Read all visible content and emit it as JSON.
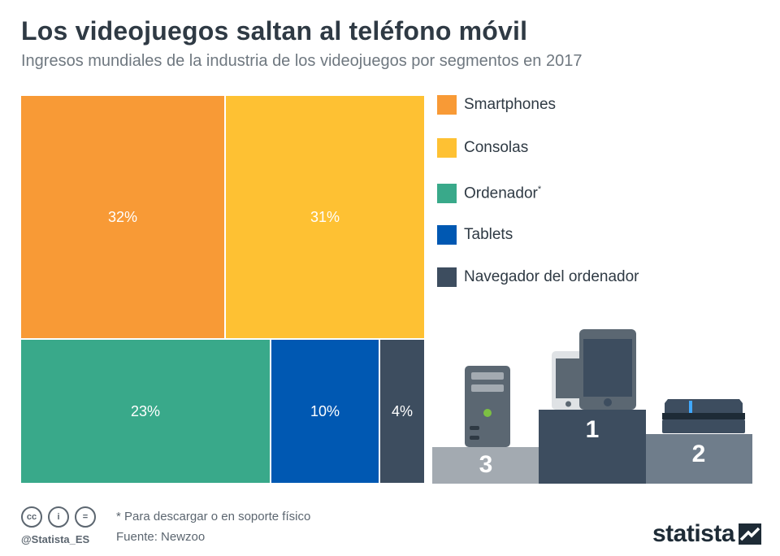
{
  "header": {
    "title": "Los videojuegos saltan al teléfono móvil",
    "subtitle": "Ingresos mundiales de la industria de los videojuegos por segmentos en 2017"
  },
  "chart_data": {
    "type": "treemap",
    "title": "Los videojuegos saltan al teléfono móvil",
    "subtitle": "Ingresos mundiales de la industria de los videojuegos por segmentos en 2017",
    "unit": "%",
    "segments": [
      {
        "name": "Smartphones",
        "value": 32,
        "label": "32%",
        "color": "#f89a36"
      },
      {
        "name": "Consolas",
        "value": 31,
        "label": "31%",
        "color": "#fec133"
      },
      {
        "name": "Ordenador",
        "value": 23,
        "label": "23%",
        "color": "#39a98a"
      },
      {
        "name": "Tablets",
        "value": 10,
        "label": "10%",
        "color": "#0058b2"
      },
      {
        "name": "Navegador del ordenador",
        "value": 4,
        "label": "4%",
        "color": "#3d4d5f"
      }
    ],
    "legend_placement": "right"
  },
  "legend": {
    "items": [
      {
        "label": "Smartphones",
        "suffix": "",
        "color": "#f89a36"
      },
      {
        "label": "Consolas",
        "suffix": "",
        "color": "#fec133"
      },
      {
        "label": "Ordenador",
        "suffix": "*",
        "color": "#39a98a"
      },
      {
        "label": "Tablets",
        "suffix": "",
        "color": "#0058b2"
      },
      {
        "label": "Navegador del ordenador",
        "suffix": "",
        "color": "#3d4d5f"
      }
    ]
  },
  "podium": {
    "ranks": [
      "1",
      "2",
      "3"
    ],
    "colors": {
      "first": "#3d4d5f",
      "second": "#6f7d8b",
      "third": "#a3aab1"
    }
  },
  "footer": {
    "icons": [
      "cc-icon",
      "by-icon",
      "nd-icon"
    ],
    "icon_glyphs": [
      "cc",
      "i",
      "="
    ],
    "handle": "@Statista_ES",
    "note": "* Para descargar o en soporte físico",
    "source": "Fuente: Newzoo",
    "brand": "statista"
  }
}
